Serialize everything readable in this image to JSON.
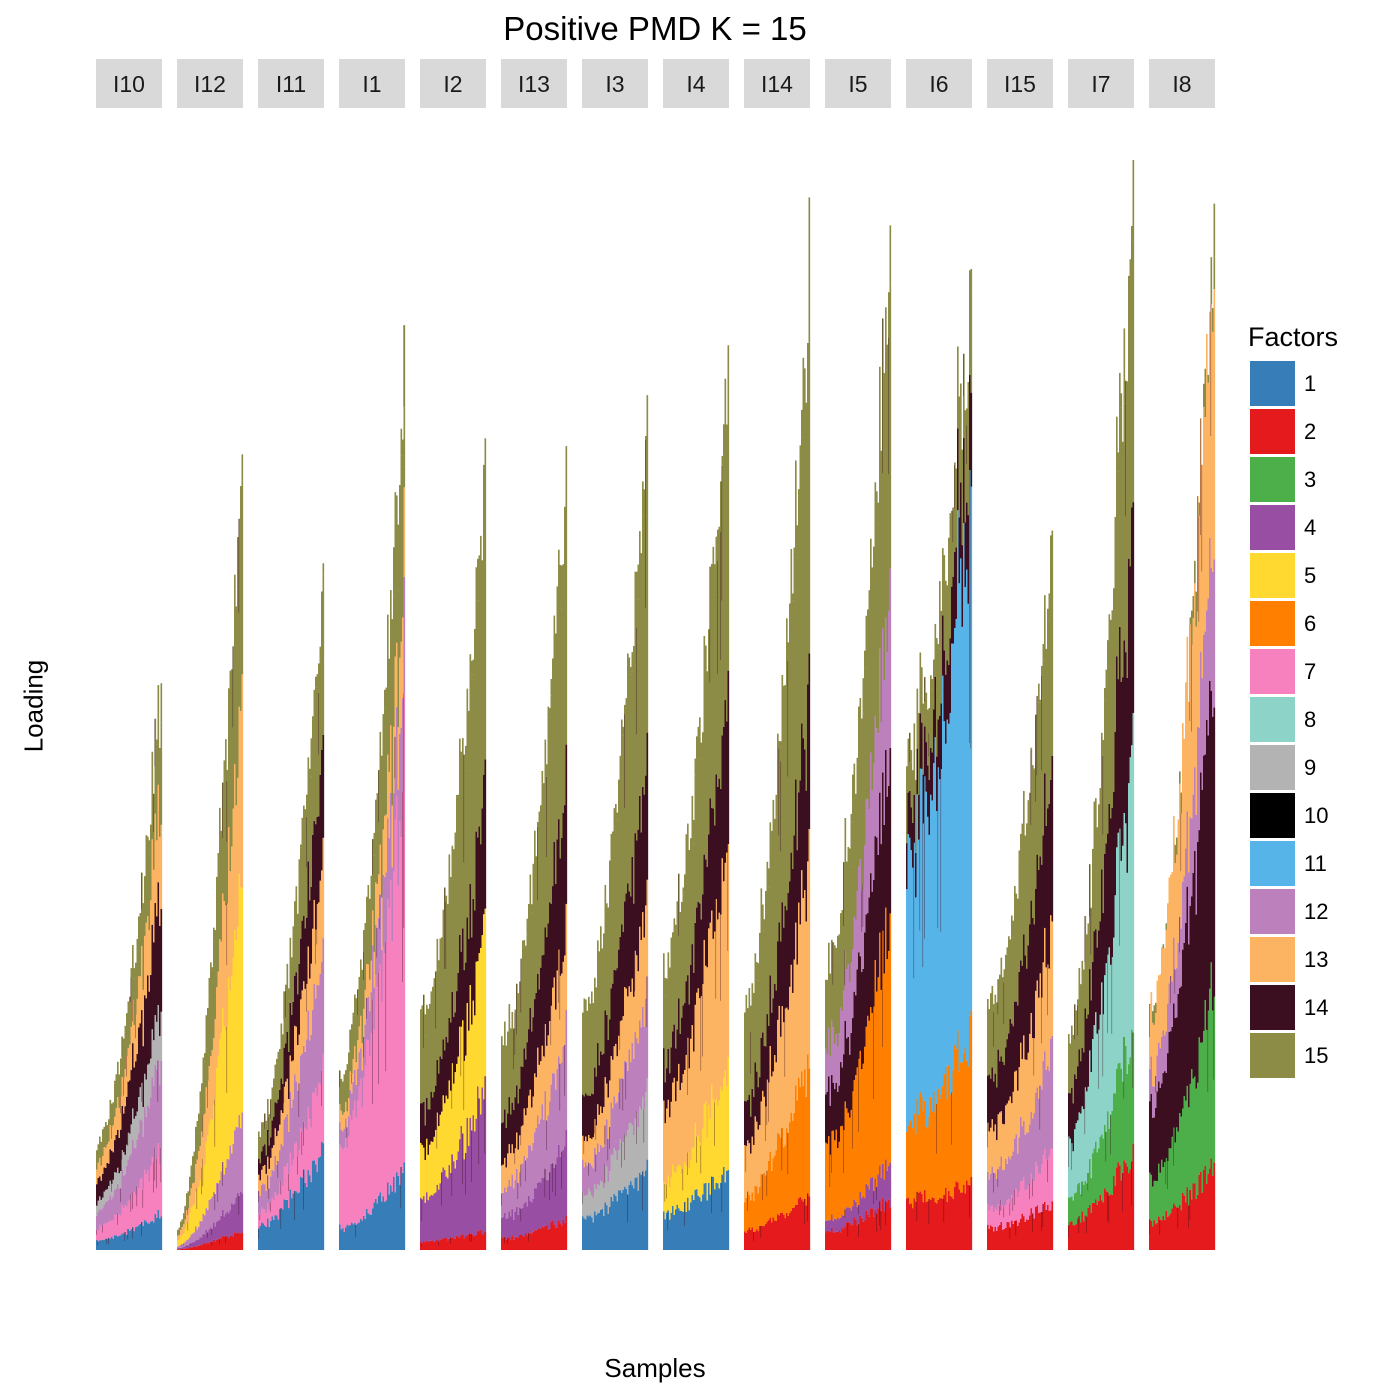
{
  "chart_data": {
    "type": "bar",
    "title": "Positive PMD K = 15",
    "xlabel": "Samples",
    "ylabel": "Loading",
    "legend_title": "Factors",
    "legend_position": "right",
    "grid": false,
    "y_ticks_shown": false,
    "ylim": [
      0,
      1.0
    ],
    "stacked": true,
    "factors": [
      {
        "name": "1",
        "color": "#377eb8"
      },
      {
        "name": "2",
        "color": "#e41a1c"
      },
      {
        "name": "3",
        "color": "#4daf4a"
      },
      {
        "name": "4",
        "color": "#984ea3"
      },
      {
        "name": "5",
        "color": "#ffd92f"
      },
      {
        "name": "6",
        "color": "#ff7f00"
      },
      {
        "name": "7",
        "color": "#f781bf"
      },
      {
        "name": "8",
        "color": "#8dd3c7"
      },
      {
        "name": "9",
        "color": "#b3b3b3"
      },
      {
        "name": "10",
        "color": "#000000"
      },
      {
        "name": "11",
        "color": "#56b4e9"
      },
      {
        "name": "12",
        "color": "#bc80bd"
      },
      {
        "name": "13",
        "color": "#fdb462"
      },
      {
        "name": "14",
        "color": "#3b0f1f"
      },
      {
        "name": "15",
        "color": "#8c8c46"
      }
    ],
    "panels": [
      {
        "label": "I10",
        "min_total": 0.1,
        "max_total": 0.52,
        "composition": [
          [
            "1",
            0.08
          ],
          [
            "7",
            0.12
          ],
          [
            "12",
            0.16
          ],
          [
            "9",
            0.1
          ],
          [
            "14",
            0.2
          ],
          [
            "13",
            0.16
          ],
          [
            "15",
            0.18
          ]
        ]
      },
      {
        "label": "I12",
        "min_total": 0.02,
        "max_total": 0.73,
        "composition": [
          [
            "2",
            0.03
          ],
          [
            "4",
            0.05
          ],
          [
            "12",
            0.1
          ],
          [
            "5",
            0.3
          ],
          [
            "13",
            0.24
          ],
          [
            "15",
            0.28
          ]
        ]
      },
      {
        "label": "I11",
        "min_total": 0.11,
        "max_total": 0.63,
        "composition": [
          [
            "1",
            0.18
          ],
          [
            "7",
            0.12
          ],
          [
            "12",
            0.18
          ],
          [
            "13",
            0.14
          ],
          [
            "14",
            0.16
          ],
          [
            "15",
            0.22
          ]
        ]
      },
      {
        "label": "I1",
        "min_total": 0.16,
        "max_total": 0.82,
        "composition": [
          [
            "1",
            0.11
          ],
          [
            "7",
            0.46
          ],
          [
            "12",
            0.12
          ],
          [
            "13",
            0.1
          ],
          [
            "15",
            0.21
          ]
        ]
      },
      {
        "label": "I2",
        "min_total": 0.22,
        "max_total": 0.72,
        "composition": [
          [
            "2",
            0.03
          ],
          [
            "4",
            0.19
          ],
          [
            "5",
            0.21
          ],
          [
            "14",
            0.17
          ],
          [
            "15",
            0.4
          ]
        ]
      },
      {
        "label": "I13",
        "min_total": 0.19,
        "max_total": 0.71,
        "composition": [
          [
            "2",
            0.05
          ],
          [
            "4",
            0.1
          ],
          [
            "12",
            0.14
          ],
          [
            "13",
            0.14
          ],
          [
            "14",
            0.2
          ],
          [
            "15",
            0.37
          ]
        ]
      },
      {
        "label": "I3",
        "min_total": 0.22,
        "max_total": 0.78,
        "composition": [
          [
            "1",
            0.12
          ],
          [
            "9",
            0.1
          ],
          [
            "12",
            0.12
          ],
          [
            "13",
            0.12
          ],
          [
            "14",
            0.18
          ],
          [
            "15",
            0.36
          ]
        ]
      },
      {
        "label": "I4",
        "min_total": 0.27,
        "max_total": 0.83,
        "composition": [
          [
            "1",
            0.11
          ],
          [
            "5",
            0.12
          ],
          [
            "13",
            0.26
          ],
          [
            "14",
            0.17
          ],
          [
            "15",
            0.34
          ]
        ]
      },
      {
        "label": "I14",
        "min_total": 0.23,
        "max_total": 0.91,
        "composition": [
          [
            "2",
            0.07
          ],
          [
            "6",
            0.14
          ],
          [
            "13",
            0.22
          ],
          [
            "14",
            0.17
          ],
          [
            "15",
            0.4
          ]
        ]
      },
      {
        "label": "I5",
        "min_total": 0.26,
        "max_total": 0.94,
        "composition": [
          [
            "2",
            0.06
          ],
          [
            "4",
            0.04
          ],
          [
            "6",
            0.26
          ],
          [
            "14",
            0.18
          ],
          [
            "12",
            0.16
          ],
          [
            "15",
            0.3
          ]
        ]
      },
      {
        "label": "I6",
        "min_total": 0.46,
        "max_total": 0.9,
        "composition": [
          [
            "2",
            0.09
          ],
          [
            "6",
            0.16
          ],
          [
            "11",
            0.56
          ],
          [
            "14",
            0.09
          ],
          [
            "15",
            0.1
          ]
        ]
      },
      {
        "label": "I15",
        "min_total": 0.23,
        "max_total": 0.66,
        "composition": [
          [
            "2",
            0.08
          ],
          [
            "7",
            0.08
          ],
          [
            "12",
            0.14
          ],
          [
            "13",
            0.18
          ],
          [
            "14",
            0.22
          ],
          [
            "15",
            0.3
          ]
        ]
      },
      {
        "label": "I7",
        "min_total": 0.2,
        "max_total": 1.0,
        "composition": [
          [
            "2",
            0.11
          ],
          [
            "3",
            0.12
          ],
          [
            "8",
            0.27
          ],
          [
            "14",
            0.22
          ],
          [
            "15",
            0.28
          ]
        ]
      },
      {
        "label": "I8",
        "min_total": 0.23,
        "max_total": 0.96,
        "composition": [
          [
            "2",
            0.1
          ],
          [
            "3",
            0.18
          ],
          [
            "14",
            0.3
          ],
          [
            "12",
            0.14
          ],
          [
            "13",
            0.28
          ]
        ]
      }
    ]
  }
}
